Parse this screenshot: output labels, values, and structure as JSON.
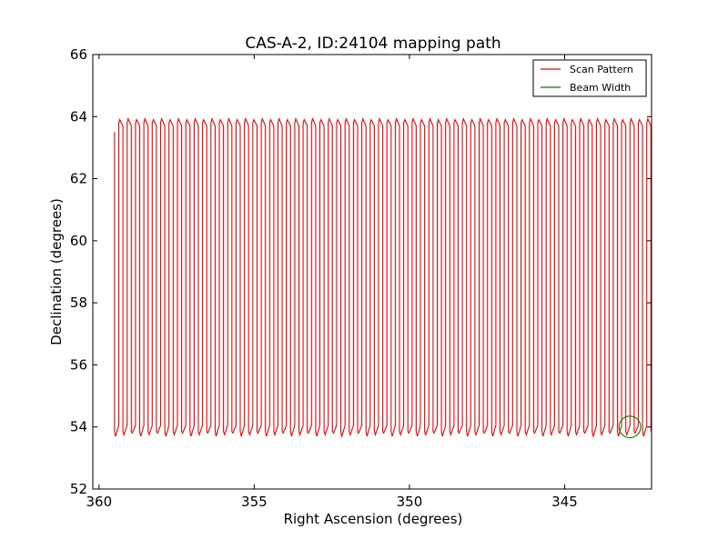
{
  "chart_data": {
    "type": "line",
    "title": "CAS-A-2, ID:24104 mapping path",
    "xlabel": "Right Ascension (degrees)",
    "ylabel": "Declination (degrees)",
    "xlim": [
      360.2,
      342.2
    ],
    "ylim": [
      52,
      66
    ],
    "x_inverted": true,
    "xticks": [
      360,
      355,
      350,
      345
    ],
    "yticks": [
      52,
      54,
      56,
      58,
      60,
      62,
      64,
      66
    ],
    "grid": false,
    "legend_position": "top-right",
    "series": [
      {
        "name": "Scan Pattern",
        "color": "#ff0000",
        "scan": {
          "ra_start": 359.5,
          "ra_end": 342.3,
          "ra_step": 0.135,
          "dec_low": 53.75,
          "dec_high": 63.9,
          "first_dec": 63.5
        }
      },
      {
        "name": "Beam Width",
        "color": "#008000",
        "circle": {
          "ra_center": 342.9,
          "dec_center": 54.0,
          "radius_deg": 0.35
        }
      }
    ]
  }
}
